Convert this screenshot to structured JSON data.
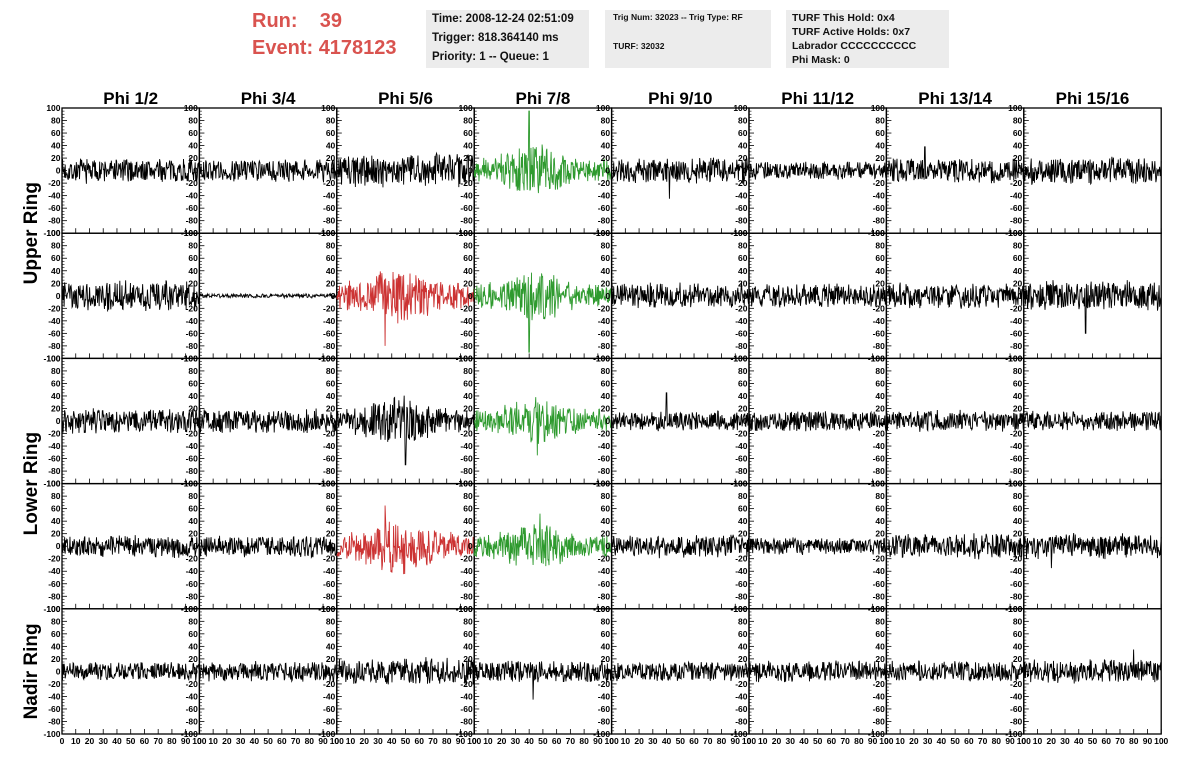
{
  "header": {
    "run_label": "Run:",
    "run_value": "39",
    "event_label": "Event:",
    "event_value": "4178123",
    "time_line": "Time: 2008-12-24 02:51:09",
    "trigger_line": "Trigger: 818.364140 ms",
    "priority_line": "Priority: 1 -- Queue: 1",
    "trig_num_line": "Trig Num: 32023 -- Trig Type: RF",
    "turf_line": "TURF: 32032",
    "turf_hold_line": "TURF This Hold: 0x4",
    "turf_active_line": "TURF Active Holds: 0x7",
    "labrador_line": "Labrador CCCCCCCCCC",
    "phi_mask_line": "Phi Mask: 0"
  },
  "chart_data": {
    "type": "line",
    "title": "",
    "columns": [
      "Phi 1/2",
      "Phi 3/4",
      "Phi 5/6",
      "Phi 7/8",
      "Phi 9/10",
      "Phi 11/12",
      "Phi 13/14",
      "Phi 15/16"
    ],
    "ring_labels": [
      "Upper Ring",
      "Lower Ring",
      "Nadir Ring"
    ],
    "row_ring_spans": [
      [
        0,
        1
      ],
      [
        2,
        3
      ],
      [
        4,
        4
      ]
    ],
    "xlim": [
      0,
      100
    ],
    "ylim": [
      -100,
      100
    ],
    "x_ticks": [
      0,
      10,
      20,
      30,
      40,
      50,
      60,
      70,
      80,
      90,
      100
    ],
    "y_ticks": [
      -100,
      -80,
      -60,
      -40,
      -20,
      0,
      20,
      40,
      60,
      80,
      100
    ],
    "grid": false,
    "trace_colors": {
      "normal": "#000000",
      "green": "#2e9a2e",
      "red": "#cc3333"
    },
    "panels": [
      [
        {
          "c": "normal",
          "a": 18,
          "pk": null
        },
        {
          "c": "normal",
          "a": 16,
          "pk": null
        },
        {
          "c": "normal",
          "a": 24,
          "pk": null
        },
        {
          "c": "green",
          "a": 28,
          "pk": [
            40,
            95
          ]
        },
        {
          "c": "normal",
          "a": 18,
          "pk": [
            42,
            -45
          ]
        },
        {
          "c": "normal",
          "a": 13,
          "pk": null
        },
        {
          "c": "normal",
          "a": 18,
          "pk": [
            28,
            38
          ]
        },
        {
          "c": "normal",
          "a": 20,
          "pk": null
        }
      ],
      [
        {
          "c": "normal",
          "a": 22,
          "pk": null
        },
        {
          "c": "normal",
          "a": 3,
          "pk": null
        },
        {
          "c": "red",
          "a": 32,
          "pk": [
            35,
            -80
          ]
        },
        {
          "c": "green",
          "a": 28,
          "pk": [
            40,
            -90
          ]
        },
        {
          "c": "normal",
          "a": 18,
          "pk": null
        },
        {
          "c": "normal",
          "a": 17,
          "pk": null
        },
        {
          "c": "normal",
          "a": 18,
          "pk": null
        },
        {
          "c": "normal",
          "a": 22,
          "pk": [
            45,
            -60
          ]
        }
      ],
      [
        {
          "c": "normal",
          "a": 18,
          "pk": null
        },
        {
          "c": "normal",
          "a": 17,
          "pk": null
        },
        {
          "c": "normal",
          "a": 28,
          "pk": [
            50,
            -70
          ]
        },
        {
          "c": "green",
          "a": 26,
          "pk": [
            46,
            -55
          ]
        },
        {
          "c": "normal",
          "a": 14,
          "pk": [
            40,
            45
          ]
        },
        {
          "c": "normal",
          "a": 15,
          "pk": null
        },
        {
          "c": "normal",
          "a": 15,
          "pk": null
        },
        {
          "c": "normal",
          "a": 14,
          "pk": null
        }
      ],
      [
        {
          "c": "normal",
          "a": 16,
          "pk": null
        },
        {
          "c": "normal",
          "a": 16,
          "pk": null
        },
        {
          "c": "red",
          "a": 30,
          "pk": [
            35,
            65
          ]
        },
        {
          "c": "green",
          "a": 25,
          "pk": [
            48,
            52
          ]
        },
        {
          "c": "normal",
          "a": 16,
          "pk": null
        },
        {
          "c": "normal",
          "a": 12,
          "pk": null
        },
        {
          "c": "normal",
          "a": 18,
          "pk": null
        },
        {
          "c": "normal",
          "a": 18,
          "pk": [
            20,
            -35
          ]
        }
      ],
      [
        {
          "c": "normal",
          "a": 14,
          "pk": null
        },
        {
          "c": "normal",
          "a": 14,
          "pk": null
        },
        {
          "c": "normal",
          "a": 20,
          "pk": null
        },
        {
          "c": "normal",
          "a": 16,
          "pk": [
            43,
            -45
          ]
        },
        {
          "c": "normal",
          "a": 14,
          "pk": null
        },
        {
          "c": "normal",
          "a": 15,
          "pk": null
        },
        {
          "c": "normal",
          "a": 15,
          "pk": null
        },
        {
          "c": "normal",
          "a": 17,
          "pk": [
            80,
            35
          ]
        }
      ]
    ]
  }
}
